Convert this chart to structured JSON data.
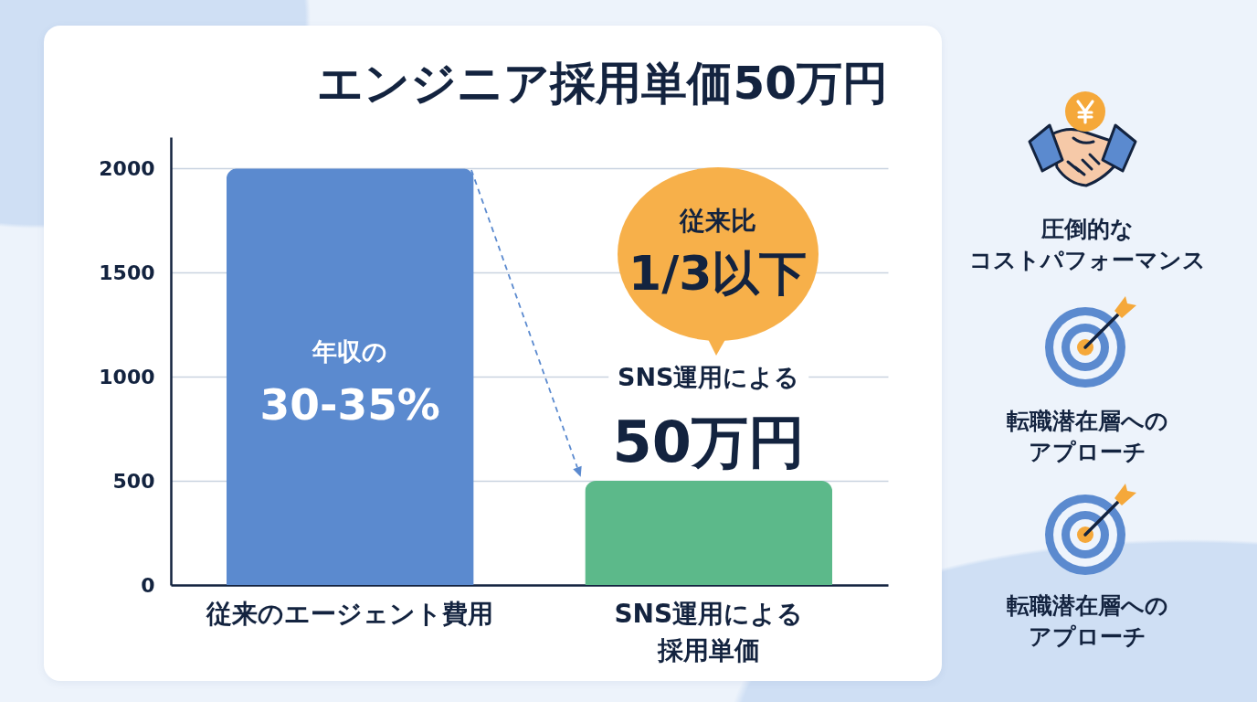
{
  "chart_data": [
    {
      "type": "bar",
      "title": "エンジニア採用単価50万円",
      "categories": [
        "従来のエージェント費用",
        "SNS運用による採用単価"
      ],
      "values": [
        2000,
        500
      ],
      "colors": [
        "#5b8acf",
        "#5cb98a"
      ],
      "ylim": [
        0,
        2150
      ],
      "yticks": [
        0,
        500,
        1000,
        1500,
        2000
      ],
      "grid": "y",
      "annotations": [
        "年収の",
        "30-35%",
        "従来比",
        "1/3以下",
        "SNS運用による",
        "50万円"
      ]
    },
    {
      "type": "other",
      "annotations": [
        "圧倒的なコストパフォーマンス",
        "転職潜在層へのアプローチ",
        "転職潜在層へのアプローチ"
      ]
    }
  ]
}
